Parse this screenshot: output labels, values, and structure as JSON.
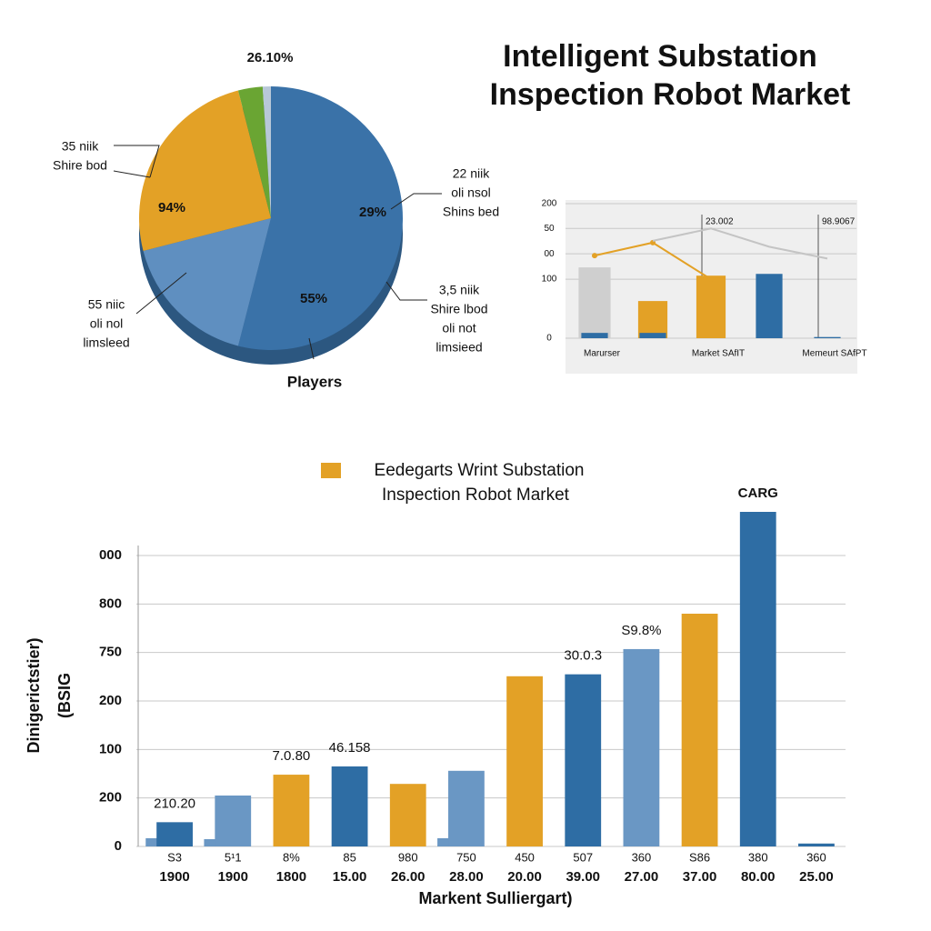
{
  "title_lines": [
    "Intelligent Substation",
    "Inspection Robot Market"
  ],
  "chart_data": [
    {
      "type": "pie",
      "values": [
        54,
        17,
        25,
        3,
        1
      ],
      "colors": [
        "#3a72a8",
        "#5f8fc0",
        "#e3a126",
        "#6aa533",
        "#b8c8d8"
      ],
      "annotations": [
        {
          "text": "29%",
          "slice": 0
        },
        {
          "text": "55%",
          "slice": 1
        },
        {
          "text": "94%",
          "slice": 2
        },
        {
          "text": "26.10%",
          "slice": 4
        }
      ],
      "callouts": [
        {
          "lines": [
            "35 niik",
            "Shire bod"
          ],
          "slice": 2
        },
        {
          "lines": [
            "22 niik",
            "oli nsol",
            "Shins bed"
          ],
          "slice": 0
        },
        {
          "lines": [
            "55 niic",
            "oli nol",
            "limsleed"
          ],
          "slice": 1
        },
        {
          "lines": [
            "3,5 niik",
            "Shire lbod",
            "oli not",
            "limsieed"
          ],
          "slice": 0
        }
      ],
      "caption": "Players"
    },
    {
      "type": "combo",
      "categories": [
        "Marurser",
        null,
        "Market SAfIT",
        null,
        "Memeurt SAfPT"
      ],
      "bars": [
        {
          "color": "#cfcfcf",
          "values": [
            120,
            null,
            null,
            null,
            null
          ]
        },
        {
          "color": "#e3a126",
          "values": [
            null,
            63,
            106,
            null,
            null
          ]
        },
        {
          "color": "#2e6da4",
          "values": [
            9,
            9,
            null,
            109,
            2
          ]
        }
      ],
      "lines": [
        {
          "color": "#e3a126",
          "values": [
            140,
            162,
            100,
            null,
            null
          ]
        },
        {
          "color": "#c4c4c4",
          "values": [
            null,
            165,
            186,
            155,
            135
          ]
        }
      ],
      "annotations": [
        {
          "text": "23.002",
          "slot": 2
        },
        {
          "text": "98.9067",
          "slot": 4
        }
      ],
      "ylim": [
        0,
        228
      ],
      "yticks": [
        0,
        100,
        {
          "value": 143,
          "label": "00"
        },
        {
          "value": 186,
          "label": "50"
        },
        {
          "value": 228,
          "label": "200"
        }
      ],
      "grid": true
    },
    {
      "type": "bar",
      "legend": {
        "color": "#e3a126",
        "lines": [
          "Eedegarts Wrint Substation",
          "Inspection Robot Market"
        ]
      },
      "categories": [
        "S3",
        "5¹1",
        "8%",
        "85",
        "980",
        "750",
        "450",
        "507",
        "360",
        "S86",
        "380",
        "360"
      ],
      "sub_categories": [
        "1900",
        "1900",
        "1800",
        "15.00",
        "26.00",
        "28.00",
        "20.00",
        "39.00",
        "27.00",
        "37.00",
        "80.00",
        "25.00"
      ],
      "values": [
        0.5,
        1.05,
        1.48,
        1.65,
        1.29,
        1.56,
        3.51,
        3.55,
        4.07,
        4.8,
        6.9,
        0.06
      ],
      "colors": [
        "#2e6da4",
        "#6a97c4",
        "#e3a126",
        "#2e6da4",
        "#e3a126",
        "#6a97c4",
        "#e3a126",
        "#2e6da4",
        "#6a97c4",
        "#e3a126",
        "#2e6da4",
        "#2e6da4"
      ],
      "base_values": [
        0.17,
        0.15,
        null,
        null,
        null,
        0.17,
        null,
        null,
        null,
        null,
        null,
        null
      ],
      "base_color": "#6a97c4",
      "annotations": [
        {
          "text": "210.20",
          "category": 0
        },
        {
          "text": "7.0.80",
          "category": 2
        },
        {
          "text": "46.158",
          "category": 3
        },
        {
          "text": "30.0.3",
          "category": 7
        },
        {
          "text": "S9.8%",
          "category": 8
        },
        {
          "text": "CARG",
          "category": 10
        }
      ],
      "ylabel_lines": [
        "Dinigerictstier)",
        "(BSIG"
      ],
      "xlabel": "Markent Sulliergart)",
      "ylim": [
        0,
        7.2
      ],
      "yticks": [
        0,
        {
          "value": 1,
          "label": "200"
        },
        {
          "value": 2,
          "label": "100"
        },
        {
          "value": 3,
          "label": "200"
        },
        {
          "value": 4,
          "label": "750"
        },
        {
          "value": 5,
          "label": "800"
        },
        {
          "value": 6,
          "label": "000"
        }
      ],
      "grid": true
    }
  ]
}
